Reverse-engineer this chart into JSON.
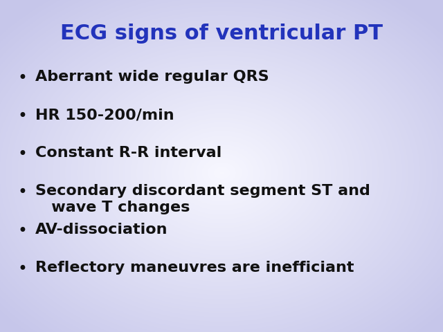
{
  "title": "ECG signs of ventricular PT",
  "title_color": "#2233BB",
  "title_fontsize": 22,
  "title_fontstyle": "bold",
  "bullet_items": [
    "Aberrant wide regular QRS",
    "HR 150-200/min",
    "Constant R-R interval",
    "Secondary discordant segment ST and\n   wave T changes",
    "AV-dissociation",
    "Reflectory maneuvres are inefficiant"
  ],
  "bullet_color": "#111111",
  "bullet_fontsize": 16,
  "bullet_fontstyle": "bold",
  "bullet_char": "•",
  "fig_width": 6.4,
  "fig_height": 4.8,
  "dpi": 100
}
